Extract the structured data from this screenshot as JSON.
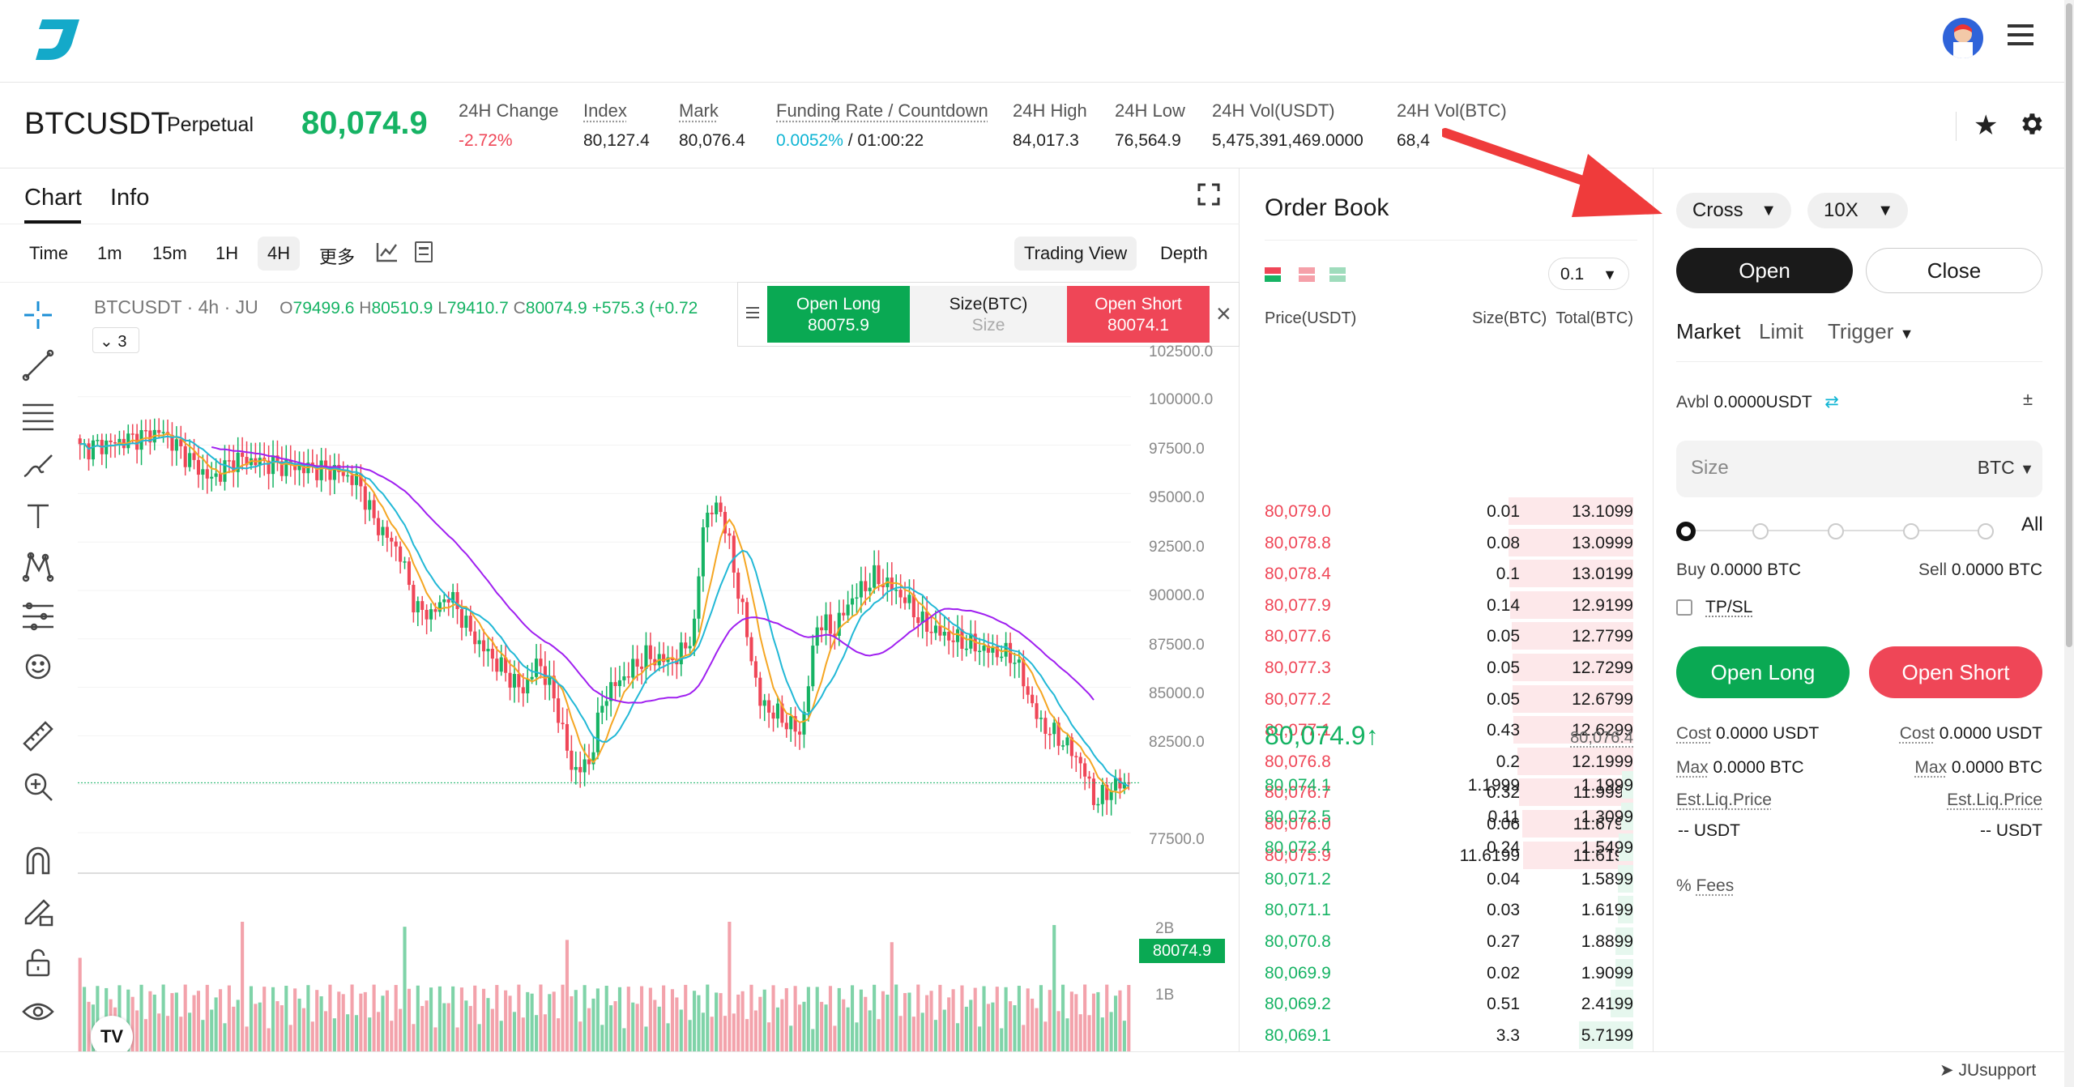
{
  "header": {
    "logo": "J",
    "avatar": "user-avatar",
    "menu": "hamburger-icon"
  },
  "ticker": {
    "symbol": "BTCUSDT",
    "type": "Perpetual",
    "price": "80,074.9",
    "stats": [
      {
        "label": "24H Change",
        "value": "-2.72%"
      },
      {
        "label": "Index",
        "value": "80,127.4"
      },
      {
        "label": "Mark",
        "value": "80,076.4"
      },
      {
        "label": "Funding Rate / Countdown",
        "rate": "0.0052%",
        "countdown": "/ 01:00:22"
      },
      {
        "label": "24H High",
        "value": "84,017.3"
      },
      {
        "label": "24H Low",
        "value": "76,564.9"
      },
      {
        "label": "24H Vol(USDT)",
        "value": "5,475,391,469.0000"
      },
      {
        "label": "24H Vol(BTC)",
        "value": "68,4"
      }
    ]
  },
  "chart": {
    "tabs": [
      "Chart",
      "Info"
    ],
    "intervals": [
      "Time",
      "1m",
      "15m",
      "1H",
      "4H",
      "更多"
    ],
    "views": [
      "Trading View",
      "Depth"
    ],
    "legend": {
      "title": "BTCUSDT · 4h · JU",
      "o": "79499.6",
      "h": "80510.9",
      "l": "79410.7",
      "c": "80074.9",
      "chg": "+575.3 (+0.72"
    },
    "indicators_count": "3",
    "quick": {
      "long_label": "Open Long",
      "long_price": "80075.9",
      "size_label": "Size(BTC)",
      "size_ph": "Size",
      "short_label": "Open Short",
      "short_price": "80074.1"
    },
    "price_ticks": [
      "102500.0",
      "100000.0",
      "97500.0",
      "95000.0",
      "92500.0",
      "90000.0",
      "87500.0",
      "85000.0",
      "82500.0",
      "80074.9",
      "77500.0"
    ],
    "vol_ticks": [
      "2B",
      "1B"
    ],
    "tv_logo": "TV"
  },
  "orderbook": {
    "title": "Order Book",
    "precision": "0.1",
    "headers": [
      "Price(USDT)",
      "Size(BTC)",
      "Total(BTC)"
    ],
    "asks": [
      [
        "80,079.0",
        "0.01",
        "13.1099"
      ],
      [
        "80,078.8",
        "0.08",
        "13.0999"
      ],
      [
        "80,078.4",
        "0.1",
        "13.0199"
      ],
      [
        "80,077.9",
        "0.14",
        "12.9199"
      ],
      [
        "80,077.6",
        "0.05",
        "12.7799"
      ],
      [
        "80,077.3",
        "0.05",
        "12.7299"
      ],
      [
        "80,077.2",
        "0.05",
        "12.6799"
      ],
      [
        "80,077.1",
        "0.43",
        "12.6299"
      ],
      [
        "80,076.8",
        "0.2",
        "12.1999"
      ],
      [
        "80,076.7",
        "0.32",
        "11.9999"
      ],
      [
        "80,076.0",
        "0.06",
        "11.6799"
      ],
      [
        "80,075.9",
        "11.6199",
        "11.6199"
      ]
    ],
    "last": "80,074.9",
    "last_arrow": "↑",
    "mark": "80,076.4",
    "bids": [
      [
        "80,074.1",
        "1.1999",
        "1.1999"
      ],
      [
        "80,072.5",
        "0.11",
        "1.3099"
      ],
      [
        "80,072.4",
        "0.24",
        "1.5499"
      ],
      [
        "80,071.2",
        "0.04",
        "1.5899"
      ],
      [
        "80,071.1",
        "0.03",
        "1.6199"
      ],
      [
        "80,070.8",
        "0.27",
        "1.8899"
      ],
      [
        "80,069.9",
        "0.02",
        "1.9099"
      ],
      [
        "80,069.2",
        "0.51",
        "2.4199"
      ],
      [
        "80,069.1",
        "3.3",
        "5.7199"
      ]
    ]
  },
  "trade": {
    "margin": "Cross",
    "leverage": "10X",
    "open": "Open",
    "close": "Close",
    "types": [
      "Market",
      "Limit",
      "Trigger"
    ],
    "avbl_label": "Avbl",
    "avbl": "0.0000USDT",
    "size_ph": "Size",
    "size_unit": "BTC",
    "all": "All",
    "buy_label": "Buy",
    "buy": "0.0000 BTC",
    "sell_label": "Sell",
    "sell": "0.0000 BTC",
    "tpsl": "TP/SL",
    "open_long": "Open Long",
    "open_short": "Open Short",
    "cost_label": "Cost",
    "cost_long": "0.0000 USDT",
    "cost_short": "0.0000 USDT",
    "max_label": "Max",
    "max_long": "0.0000 BTC",
    "max_short": "0.0000 BTC",
    "liq_label": "Est.Liq.Price",
    "liq_long": "-- USDT",
    "liq_short": "-- USDT",
    "fees": "Fees"
  },
  "footer": {
    "support": "JUsupport"
  },
  "colors": {
    "green": "#16b364",
    "red": "#ef4657",
    "accent": "#0fb5d4",
    "arrow": "#ef3b3b"
  }
}
